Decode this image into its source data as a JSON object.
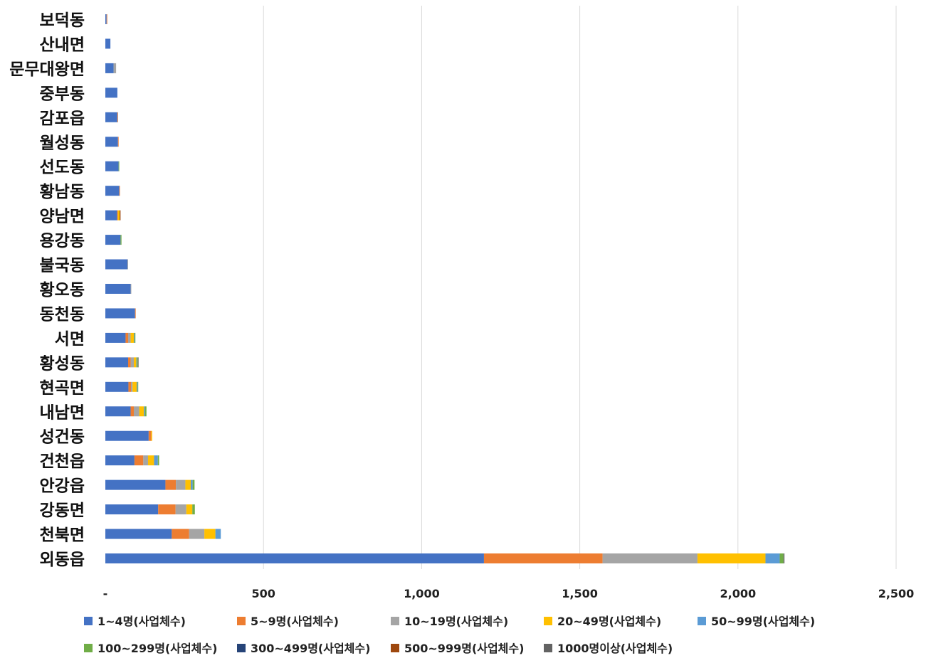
{
  "chart_data": {
    "type": "bar",
    "orientation": "horizontal",
    "stacked": true,
    "title": "",
    "xlabel": "",
    "ylabel": "",
    "xlim": [
      0,
      2500
    ],
    "x_ticks": [
      0,
      500,
      1000,
      1500,
      2000,
      2500
    ],
    "x_tick_labels": [
      "-",
      "500",
      "1,000",
      "1,500",
      "2,000",
      "2,500"
    ],
    "grid": "vertical",
    "legend_position": "bottom",
    "categories": [
      "보덕동",
      "산내면",
      "문무대왕면",
      "중부동",
      "감포읍",
      "월성동",
      "선도동",
      "황남동",
      "양남면",
      "용강동",
      "불국동",
      "황오동",
      "동천동",
      "서면",
      "황성동",
      "현곡면",
      "내남면",
      "성건동",
      "건천읍",
      "안강읍",
      "강동면",
      "천북면",
      "외동읍"
    ],
    "series": [
      {
        "name": "1~4명(사업체수)",
        "color": "#4472C4",
        "values": [
          4,
          16,
          26,
          38,
          38,
          40,
          42,
          44,
          37,
          48,
          70,
          80,
          94,
          64,
          72,
          73,
          80,
          137,
          92,
          190,
          167,
          210,
          1197
        ]
      },
      {
        "name": "5~9명(사업체수)",
        "color": "#ED7D31",
        "values": [
          2,
          0,
          0,
          0,
          2,
          2,
          0,
          2,
          3,
          0,
          0,
          0,
          2,
          8,
          8,
          8,
          10,
          8,
          28,
          33,
          55,
          55,
          375
        ]
      },
      {
        "name": "10~19명(사업체수)",
        "color": "#A5A5A5",
        "values": [
          0,
          0,
          8,
          0,
          0,
          0,
          0,
          0,
          0,
          0,
          2,
          2,
          0,
          8,
          10,
          5,
          17,
          0,
          15,
          30,
          34,
          48,
          300
        ]
      },
      {
        "name": "20~49명(사업체수)",
        "color": "#FFC000",
        "values": [
          0,
          0,
          0,
          0,
          0,
          0,
          0,
          0,
          5,
          0,
          0,
          0,
          0,
          10,
          8,
          13,
          15,
          3,
          19,
          17,
          19,
          35,
          215
        ]
      },
      {
        "name": "50~99명(사업체수)",
        "color": "#5B9BD5",
        "values": [
          0,
          0,
          0,
          0,
          0,
          0,
          0,
          0,
          0,
          0,
          0,
          0,
          0,
          2,
          2,
          3,
          3,
          0,
          12,
          6,
          0,
          17,
          45
        ]
      },
      {
        "name": "100~299명(사업체수)",
        "color": "#70AD47",
        "values": [
          0,
          0,
          0,
          0,
          0,
          0,
          2,
          0,
          0,
          3,
          0,
          0,
          0,
          3,
          3,
          2,
          5,
          0,
          4,
          6,
          8,
          0,
          12
        ]
      },
      {
        "name": "300~499명(사업체수)",
        "color": "#264478",
        "values": [
          0,
          0,
          0,
          0,
          0,
          0,
          0,
          0,
          0,
          0,
          0,
          0,
          0,
          0,
          0,
          0,
          0,
          0,
          0,
          0,
          0,
          0,
          0
        ]
      },
      {
        "name": "500~999명(사업체수)",
        "color": "#9E480E",
        "values": [
          0,
          0,
          0,
          0,
          0,
          0,
          0,
          0,
          3,
          0,
          0,
          0,
          0,
          0,
          0,
          0,
          0,
          0,
          0,
          0,
          0,
          0,
          0
        ]
      },
      {
        "name": "1000명이상(사업체수)",
        "color": "#636363",
        "values": [
          0,
          0,
          0,
          0,
          0,
          0,
          0,
          0,
          0,
          0,
          0,
          0,
          0,
          0,
          2,
          0,
          0,
          0,
          0,
          0,
          0,
          0,
          3
        ]
      }
    ]
  }
}
